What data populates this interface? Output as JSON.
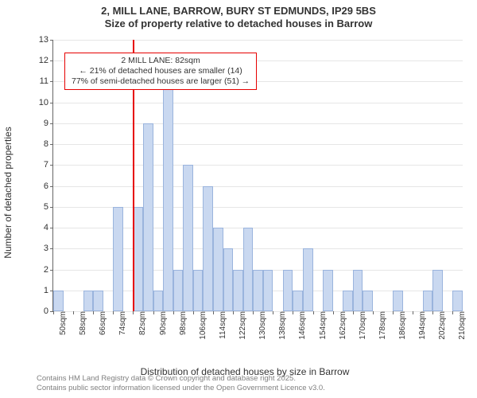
{
  "title_line1": "2, MILL LANE, BARROW, BURY ST EDMUNDS, IP29 5BS",
  "title_line2": "Size of property relative to detached houses in Barrow",
  "yaxis_label": "Number of detached properties",
  "xaxis_label": "Distribution of detached houses by size in Barrow",
  "chart": {
    "type": "histogram",
    "ylim": [
      0,
      13
    ],
    "ytick_step": 1,
    "x_start_sqm": 50,
    "x_end_sqm": 214,
    "bin_width_sqm": 4,
    "xtick_start_sqm": 50,
    "xtick_step_sqm": 8,
    "xtick_suffix": "sqm",
    "bar_fill": "#c9d8f0",
    "bar_border": "#9ab4dd",
    "bar_border_width": 1,
    "grid_color": "#e6e6e6",
    "axis_color": "#666666",
    "background": "#ffffff",
    "tick_fontsize": 11,
    "label_fontsize": 12,
    "values": [
      1,
      0,
      0,
      1,
      1,
      0,
      5,
      0,
      5,
      9,
      1,
      11,
      2,
      7,
      2,
      6,
      4,
      3,
      2,
      4,
      2,
      2,
      0,
      2,
      1,
      3,
      0,
      2,
      0,
      1,
      2,
      1,
      0,
      0,
      1,
      0,
      0,
      1,
      2,
      0,
      1
    ],
    "marker": {
      "sqm": 82,
      "color": "#e60000"
    },
    "annotation": {
      "line1": "2 MILL LANE: 82sqm",
      "line2": "← 21% of detached houses are smaller (14)",
      "line3": "77% of semi-detached houses are larger (51) →",
      "border_color": "#e60000",
      "bg_color": "#ffffff",
      "border_width": 1,
      "fontsize": 10.5
    }
  },
  "credits_line1": "Contains HM Land Registry data © Crown copyright and database right 2025.",
  "credits_line2": "Contains public sector information licensed under the Open Government Licence v3.0."
}
